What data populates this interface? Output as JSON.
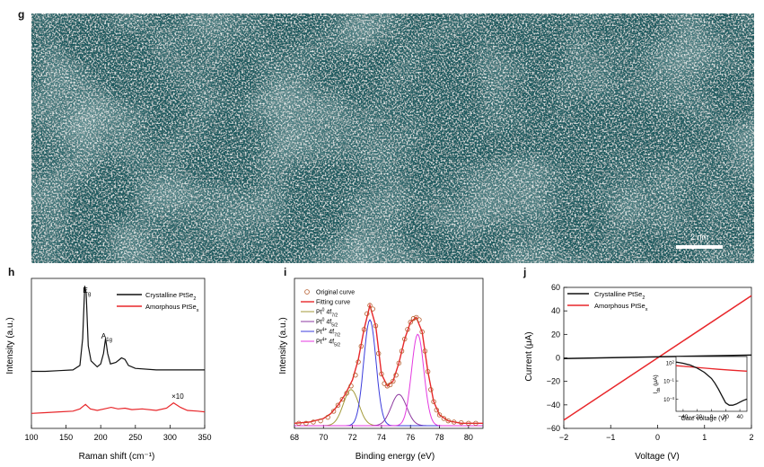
{
  "panels": {
    "g": {
      "letter": "g",
      "scalebar_label": "2 nm",
      "colors": {
        "bg": "#1f5a5e",
        "spot": "#e8f4f2"
      }
    },
    "h": {
      "letter": "h",
      "chart_data": {
        "type": "line",
        "title": "",
        "xlabel": "Raman shift (cm⁻¹)",
        "ylabel": "Intensity (a.u.)",
        "xlim": [
          100,
          350
        ],
        "xticks": [
          "100",
          "150",
          "200",
          "250",
          "300",
          "350"
        ],
        "legend_position": "top-right",
        "peak_labels": [
          {
            "text": "E",
            "sub": "g",
            "x": 178
          },
          {
            "text": "A",
            "sub": "1g",
            "x": 207
          }
        ],
        "annotation": {
          "text": "×10",
          "x": 310
        },
        "series": [
          {
            "name": "Crystalline PtSe",
            "name_sub": "2",
            "color": "#111111",
            "x": [
              100,
              120,
              140,
              160,
              170,
              174,
              177,
              179,
              182,
              186,
              195,
              200,
              204,
              207,
              210,
              214,
              222,
              230,
              235,
              240,
              250,
              280,
              320,
              350
            ],
            "y": [
              0.38,
              0.38,
              0.385,
              0.39,
              0.42,
              0.6,
              0.95,
              0.9,
              0.55,
              0.45,
              0.41,
              0.43,
              0.5,
              0.6,
              0.5,
              0.43,
              0.44,
              0.47,
              0.46,
              0.42,
              0.4,
              0.39,
              0.39,
              0.39
            ]
          },
          {
            "name": "Amorphous PtSe",
            "name_sub": "x",
            "color": "#e8262a",
            "x": [
              100,
              120,
              140,
              160,
              170,
              178,
              185,
              195,
              205,
              215,
              225,
              235,
              245,
              260,
              280,
              295,
              305,
              315,
              325,
              340,
              350
            ],
            "y": [
              0.1,
              0.105,
              0.11,
              0.115,
              0.13,
              0.16,
              0.13,
              0.12,
              0.13,
              0.14,
              0.13,
              0.135,
              0.125,
              0.13,
              0.12,
              0.135,
              0.17,
              0.14,
              0.12,
              0.115,
              0.11
            ]
          }
        ]
      }
    },
    "i": {
      "letter": "i",
      "chart_data": {
        "type": "line",
        "title": "",
        "xlabel": "Binding energy (eV)",
        "ylabel": "Intensity (a.u.)",
        "xlim": [
          68,
          81
        ],
        "xticks": [
          "68",
          "70",
          "72",
          "74",
          "76",
          "78",
          "80"
        ],
        "legend_position": "top-left",
        "original_marker_color": "#b55a2a",
        "original_points": {
          "x": [
            68.3,
            68.8,
            69.3,
            69.8,
            70.3,
            70.7,
            71.0,
            71.3,
            71.6,
            71.9,
            72.2,
            72.4,
            72.6,
            72.8,
            73.0,
            73.2,
            73.4,
            73.6,
            73.8,
            74.0,
            74.2,
            74.4,
            74.6,
            74.8,
            75.0,
            75.2,
            75.4,
            75.6,
            75.8,
            76.0,
            76.2,
            76.4,
            76.6,
            76.8,
            77.0,
            77.2,
            77.4,
            77.6,
            77.8,
            78.0,
            78.3,
            78.6,
            79.0,
            79.5,
            80.0,
            80.5
          ],
          "y": [
            0.02,
            0.02,
            0.03,
            0.04,
            0.07,
            0.12,
            0.17,
            0.22,
            0.27,
            0.33,
            0.42,
            0.53,
            0.66,
            0.8,
            0.93,
            1.0,
            0.97,
            0.83,
            0.6,
            0.43,
            0.35,
            0.33,
            0.34,
            0.37,
            0.42,
            0.52,
            0.62,
            0.72,
            0.8,
            0.86,
            0.89,
            0.9,
            0.88,
            0.78,
            0.62,
            0.45,
            0.3,
            0.2,
            0.13,
            0.09,
            0.06,
            0.04,
            0.03,
            0.025,
            0.02,
            0.02
          ]
        },
        "series": [
          {
            "name": "Original curve",
            "marker": "circle",
            "color": "#b55a2a"
          },
          {
            "name": "Fitting curve",
            "color": "#e8262a",
            "line_width": 1.4,
            "x": [
              68,
              69,
              70,
              70.5,
              71,
              71.5,
              72,
              72.4,
              72.8,
              73.2,
              73.6,
              74,
              74.4,
              74.8,
              75.2,
              75.6,
              76,
              76.4,
              76.8,
              77.2,
              77.6,
              78,
              78.6,
              79.5,
              81
            ],
            "y": [
              0.02,
              0.03,
              0.06,
              0.1,
              0.17,
              0.26,
              0.38,
              0.55,
              0.8,
              1.0,
              0.83,
              0.43,
              0.33,
              0.37,
              0.52,
              0.72,
              0.86,
              0.9,
              0.78,
              0.45,
              0.2,
              0.09,
              0.04,
              0.02,
              0.02
            ]
          },
          {
            "name": "Pt",
            "name_sup": "0",
            "name_tail": " 4f",
            "name_sub": "7/2",
            "color": "#a39a3a",
            "center": 71.9,
            "width": 0.75,
            "amp": 0.3
          },
          {
            "name": "Pt",
            "name_sup": "0",
            "name_tail": " 4f",
            "name_sub": "5/2",
            "color": "#8e3aa0",
            "center": 75.2,
            "width": 0.75,
            "amp": 0.26
          },
          {
            "name": "Pt",
            "name_sup": "4+",
            "name_tail": " 4f",
            "name_sub": "7/2",
            "color": "#3c3cdc",
            "center": 73.2,
            "width": 0.6,
            "amp": 0.88
          },
          {
            "name": "Pt",
            "name_sup": "4+",
            "name_tail": " 4f",
            "name_sub": "5/2",
            "color": "#e43ae0",
            "center": 76.5,
            "width": 0.6,
            "amp": 0.76
          }
        ]
      }
    },
    "j": {
      "letter": "j",
      "chart_data": {
        "type": "line",
        "title": "",
        "xlabel": "Voltage (V)",
        "ylabel": "Current (μA)",
        "xlim": [
          -2,
          2
        ],
        "ylim": [
          -60,
          60
        ],
        "xticks": [
          "−2",
          "−1",
          "0",
          "1",
          "2"
        ],
        "yticks": [
          "−60",
          "−40",
          "−20",
          "0",
          "20",
          "40",
          "60"
        ],
        "legend_position": "top-left",
        "series": [
          {
            "name": "Crystalline PtSe",
            "name_sub": "2",
            "color": "#111111",
            "x": [
              -2,
              2
            ],
            "y": [
              -0.6,
              2.4
            ]
          },
          {
            "name": "Amorphous PtSe",
            "name_sub": "x",
            "color": "#e8262a",
            "x": [
              -2,
              2
            ],
            "y": [
              -53,
              53
            ]
          }
        ],
        "inset": {
          "xlabel": "Gate voltage (V)",
          "ylabel": "I",
          "ylabel_sub": "ds",
          "ylabel_tail": " (μA)",
          "xlim": [
            -50,
            50
          ],
          "xticks": [
            "−40",
            "−20",
            "0",
            "20",
            "40"
          ],
          "yticks": [
            {
              "base": "10",
              "exp": "2",
              "value": 2
            },
            {
              "base": "10",
              "exp": "−1",
              "value": -1
            },
            {
              "base": "10",
              "exp": "−4",
              "value": -4
            }
          ],
          "ylog": true,
          "ylim_log10": [
            -6,
            3
          ],
          "series": [
            {
              "name": "Amorphous PtSe",
              "name_sub": "x",
              "color": "#e8262a",
              "x": [
                -50,
                -30,
                -10,
                10,
                30,
                50
              ],
              "y_log10": [
                1.5,
                1.3,
                1.1,
                0.9,
                0.75,
                0.6
              ]
            },
            {
              "name": "Crystalline PtSe",
              "name_sub": "2",
              "color": "#111111",
              "x": [
                -50,
                -40,
                -30,
                -20,
                -10,
                0,
                5,
                10,
                15,
                20,
                25,
                30,
                35,
                40,
                45,
                50
              ],
              "y_log10": [
                2.1,
                1.9,
                1.6,
                1.1,
                0.4,
                -0.6,
                -1.4,
                -2.4,
                -3.5,
                -4.6,
                -5.0,
                -5.0,
                -4.8,
                -4.5,
                -4.2,
                -4.0
              ]
            }
          ]
        }
      }
    }
  }
}
